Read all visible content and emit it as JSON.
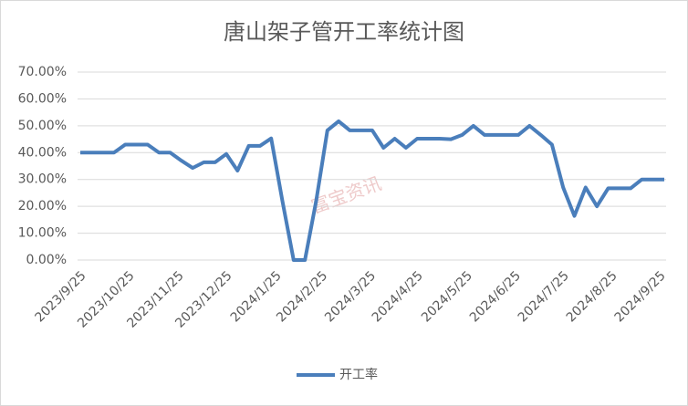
{
  "chart_data": {
    "type": "line",
    "title": "唐山架子管开工率统计图",
    "watermark": "富宝资讯",
    "categories": [
      "2023/9/25",
      null,
      null,
      null,
      "2023/10/25",
      null,
      null,
      null,
      null,
      "2023/11/25",
      null,
      null,
      null,
      "2023/12/25",
      null,
      null,
      null,
      "2024/1/25",
      null,
      null,
      null,
      null,
      "2024/2/25",
      null,
      null,
      null,
      "2024/3/25",
      null,
      null,
      null,
      "2024/4/25",
      null,
      null,
      null,
      "2024/5/25",
      null,
      null,
      null,
      null,
      "2024/6/25",
      null,
      null,
      null,
      "2024/7/25",
      null,
      null,
      null,
      "2024/8/25",
      null,
      null,
      null,
      null,
      "2024/9/25"
    ],
    "label_positions": [
      0,
      4.3,
      8.7,
      13,
      17.4,
      21.5,
      25.8,
      30,
      34.4,
      38.7,
      43,
      47.3,
      51.6
    ],
    "series": [
      {
        "name": "开工率",
        "color": "#4a7ebb",
        "values": [
          40,
          40,
          40,
          40,
          43,
          43,
          43,
          40,
          40,
          37,
          34.3,
          36.4,
          36.4,
          39.5,
          33.3,
          42.5,
          42.5,
          45.3,
          22,
          0,
          0,
          22,
          48.3,
          51.7,
          48.3,
          48.3,
          48.3,
          41.8,
          45.2,
          41.8,
          45.2,
          45.2,
          45.2,
          45,
          46.6,
          50,
          46.6,
          46.6,
          46.6,
          46.6,
          50,
          46.6,
          43,
          27,
          16.4,
          27,
          20,
          26.7,
          26.7,
          26.7,
          30,
          30,
          30
        ]
      }
    ],
    "ylim": [
      0,
      70
    ],
    "yticks": [
      {
        "value": 0,
        "label": "0.00%"
      },
      {
        "value": 10,
        "label": "10.00%"
      },
      {
        "value": 20,
        "label": "20.00%"
      },
      {
        "value": 30,
        "label": "30.00%"
      },
      {
        "value": 40,
        "label": "40.00%"
      },
      {
        "value": 50,
        "label": "50.00%"
      },
      {
        "value": 60,
        "label": "60.00%"
      },
      {
        "value": 70,
        "label": "70.00%"
      }
    ],
    "grid": true,
    "legend": "bottom"
  }
}
